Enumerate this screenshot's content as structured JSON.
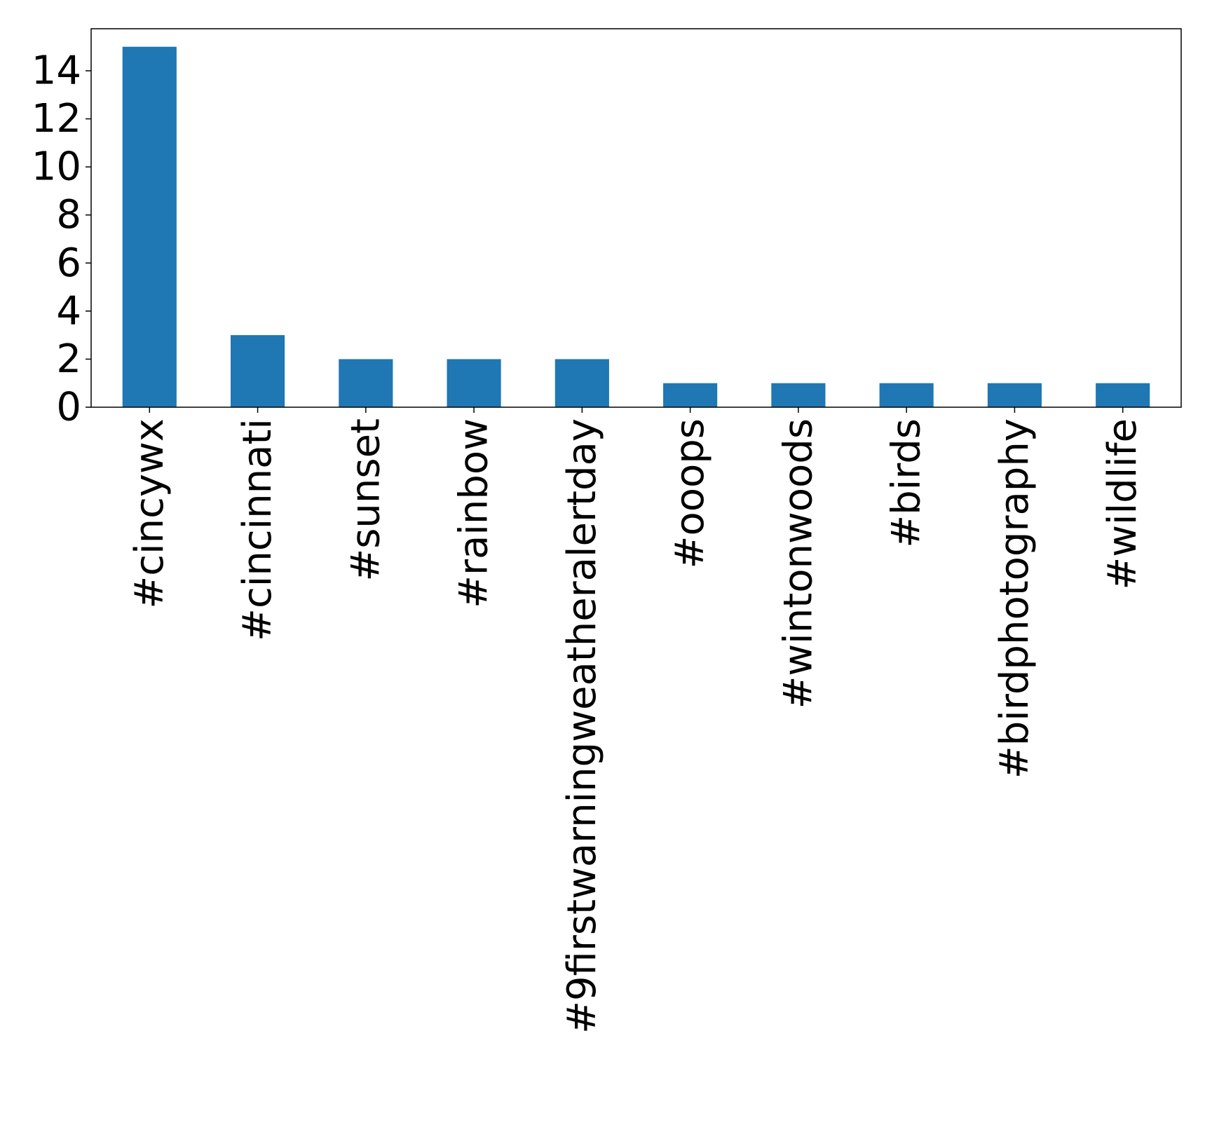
{
  "chart_data": {
    "type": "bar",
    "categories": [
      "#cincywx",
      "#cincinnati",
      "#sunset",
      "#rainbow",
      "#9firstwarningweatheralertday",
      "#ooops",
      "#wintonwoods",
      "#birds",
      "#birdphotography",
      "#wildlife"
    ],
    "values": [
      15,
      3,
      2,
      2,
      2,
      1,
      1,
      1,
      1,
      1
    ],
    "title": "",
    "xlabel": "",
    "ylabel": "",
    "ylim": [
      0,
      15.75
    ],
    "yticks": [
      "0",
      "2",
      "4",
      "6",
      "8",
      "10",
      "12",
      "14"
    ],
    "x_tick_rotation": "vertical",
    "grid": false,
    "legend": "none",
    "bar_color": "#1f77b4"
  }
}
